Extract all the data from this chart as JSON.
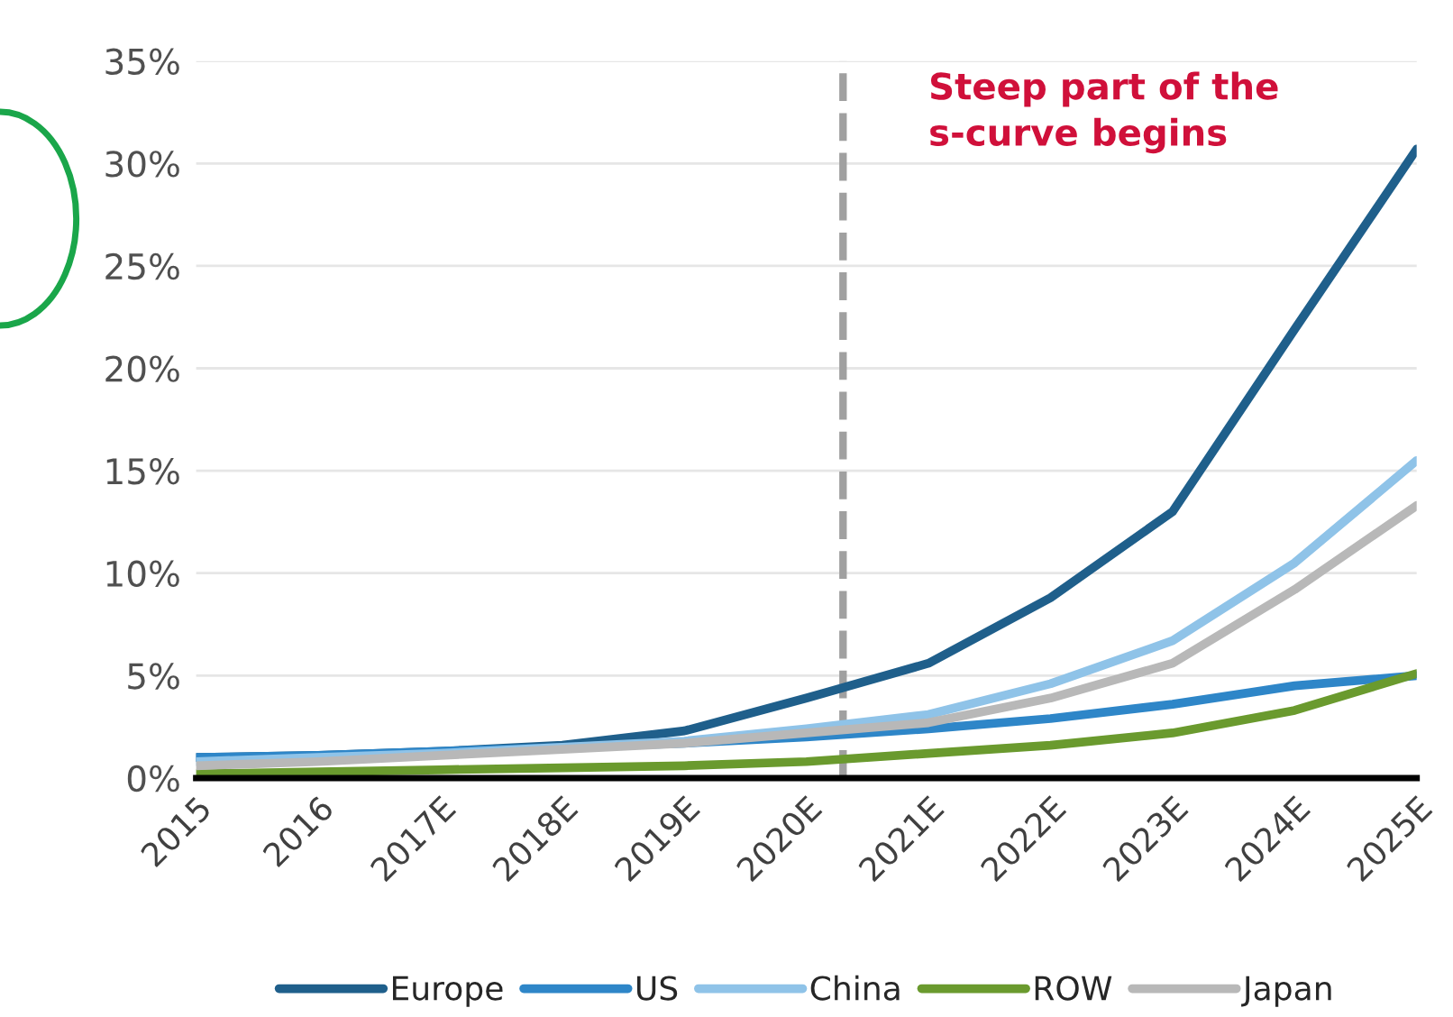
{
  "chart_data": {
    "type": "line",
    "x": [
      2015,
      2016,
      2017,
      2018,
      2019,
      2020,
      2021,
      2022,
      2023,
      2024,
      2025
    ],
    "series": [
      {
        "name": "Europe",
        "color": "#1f5f8b",
        "values": [
          1.0,
          1.1,
          1.3,
          1.6,
          2.3,
          3.9,
          5.6,
          8.8,
          13.0,
          21.9,
          30.7
        ]
      },
      {
        "name": "US",
        "color": "#2e86c8",
        "values": [
          1.0,
          1.1,
          1.3,
          1.5,
          1.7,
          2.0,
          2.4,
          2.9,
          3.6,
          4.5,
          5.0
        ]
      },
      {
        "name": "China",
        "color": "#8fc3e8",
        "values": [
          0.8,
          1.0,
          1.2,
          1.5,
          1.8,
          2.4,
          3.1,
          4.6,
          6.7,
          10.5,
          15.5
        ]
      },
      {
        "name": "ROW",
        "color": "#6a9a2e",
        "values": [
          0.2,
          0.3,
          0.4,
          0.5,
          0.6,
          0.8,
          1.2,
          1.6,
          2.2,
          3.3,
          5.1
        ]
      },
      {
        "name": "Japan",
        "color": "#b8b8b8",
        "values": [
          0.6,
          0.8,
          1.1,
          1.4,
          1.7,
          2.2,
          2.7,
          3.9,
          5.6,
          9.2,
          13.3
        ]
      }
    ],
    "xlim": [
      2015,
      2025
    ],
    "xticks": [
      2015,
      2016,
      {
        "value": 2017,
        "label": "2017E"
      },
      {
        "value": 2018,
        "label": "2018E"
      },
      {
        "value": 2019,
        "label": "2019E"
      },
      {
        "value": 2020,
        "label": "2020E"
      },
      {
        "value": 2021,
        "label": "2021E"
      },
      {
        "value": 2022,
        "label": "2022E"
      },
      {
        "value": 2023,
        "label": "2023E"
      },
      {
        "value": 2024,
        "label": "2024E"
      },
      {
        "value": 2025,
        "label": "2025E"
      }
    ],
    "ylim": [
      0,
      35
    ],
    "yticks": [
      {
        "value": 0,
        "label": "0%"
      },
      {
        "value": 5,
        "label": "5%"
      },
      {
        "value": 10,
        "label": "10%"
      },
      {
        "value": 15,
        "label": "15%"
      },
      {
        "value": 20,
        "label": "20%"
      },
      {
        "value": 25,
        "label": "25%"
      },
      {
        "value": 30,
        "label": "30%"
      },
      {
        "value": 35,
        "label": "35%"
      }
    ],
    "ref_lines": [
      {
        "axis": "x",
        "value": 2020.3,
        "label": "Steep part of the\ns-curve begins",
        "color": "#a0a0a0",
        "line_style": "dashed"
      }
    ],
    "grid": "y",
    "legend": "bottom",
    "line_style": "solid",
    "marker": "none"
  }
}
